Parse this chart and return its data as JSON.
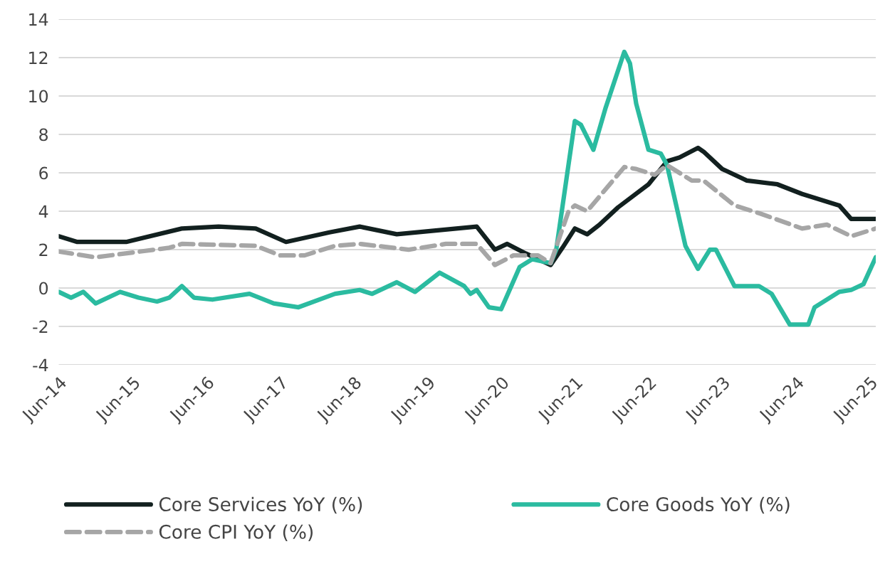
{
  "chart_data": {
    "type": "line",
    "xlim": [
      "2014-06",
      "2025-07"
    ],
    "ylim": [
      -4,
      14
    ],
    "yticks": [
      -4,
      -2,
      0,
      2,
      4,
      6,
      8,
      10,
      12,
      14
    ],
    "xticks": [
      {
        "value": "2014-06",
        "label": "Jun-14"
      },
      {
        "value": "2015-06",
        "label": "Jun-15"
      },
      {
        "value": "2016-06",
        "label": "Jun-16"
      },
      {
        "value": "2017-06",
        "label": "Jun-17"
      },
      {
        "value": "2018-06",
        "label": "Jun-18"
      },
      {
        "value": "2019-06",
        "label": "Jun-19"
      },
      {
        "value": "2020-06",
        "label": "Jun-20"
      },
      {
        "value": "2021-06",
        "label": "Jun-21"
      },
      {
        "value": "2022-06",
        "label": "Jun-22"
      },
      {
        "value": "2023-06",
        "label": "Jun-23"
      },
      {
        "value": "2024-06",
        "label": "Jun-24"
      },
      {
        "value": "2025-06",
        "label": "Jun-25"
      }
    ],
    "grid": "y",
    "legend": "bottom",
    "marker": "none",
    "series": [
      {
        "name": "Core Services YoY (%)",
        "color": "#12201f",
        "line_style": "solid",
        "x": [
          "2014-06",
          "2014-09",
          "2015-05",
          "2016-02",
          "2016-08",
          "2017-02",
          "2017-07",
          "2018-02",
          "2018-07",
          "2019-01",
          "2020-02",
          "2020-05",
          "2020-07",
          "2020-10",
          "2021-02",
          "2021-04",
          "2021-06",
          "2021-08",
          "2021-10",
          "2022-01",
          "2022-06",
          "2022-09",
          "2022-11",
          "2023-02",
          "2023-03",
          "2023-06",
          "2023-10",
          "2024-03",
          "2024-07",
          "2025-01",
          "2025-03",
          "2025-07"
        ],
        "values": [
          2.7,
          2.4,
          2.4,
          3.1,
          3.2,
          3.1,
          2.4,
          2.9,
          3.2,
          2.8,
          3.2,
          2.0,
          2.3,
          1.8,
          1.2,
          2.1,
          3.1,
          2.8,
          3.3,
          4.2,
          5.4,
          6.6,
          6.8,
          7.3,
          7.1,
          6.2,
          5.6,
          5.4,
          4.9,
          4.3,
          3.6,
          3.6
        ]
      },
      {
        "name": "Core Goods YoY (%)",
        "color": "#2bbba0",
        "line_style": "solid",
        "x": [
          "2014-06",
          "2014-08",
          "2014-10",
          "2014-12",
          "2015-04",
          "2015-07",
          "2015-10",
          "2015-12",
          "2016-02",
          "2016-04",
          "2016-07",
          "2017-01",
          "2017-05",
          "2017-09",
          "2018-03",
          "2018-07",
          "2018-09",
          "2019-01",
          "2019-04",
          "2019-08",
          "2019-12",
          "2020-01",
          "2020-02",
          "2020-04",
          "2020-06",
          "2020-09",
          "2020-11",
          "2021-02",
          "2021-03",
          "2021-06",
          "2021-07",
          "2021-09",
          "2021-11",
          "2022-02",
          "2022-03",
          "2022-04",
          "2022-06",
          "2022-08",
          "2022-09",
          "2022-12",
          "2023-02",
          "2023-04",
          "2023-05",
          "2023-08",
          "2023-12",
          "2024-02",
          "2024-05",
          "2024-08",
          "2024-09",
          "2025-01",
          "2025-03",
          "2025-05",
          "2025-07"
        ],
        "values": [
          -0.2,
          -0.5,
          -0.2,
          -0.8,
          -0.2,
          -0.5,
          -0.7,
          -0.5,
          0.1,
          -0.5,
          -0.6,
          -0.3,
          -0.8,
          -1.0,
          -0.3,
          -0.1,
          -0.3,
          0.3,
          -0.2,
          0.8,
          0.1,
          -0.3,
          -0.1,
          -1.0,
          -1.1,
          1.1,
          1.5,
          1.3,
          2.0,
          8.7,
          8.5,
          7.2,
          9.4,
          12.3,
          11.7,
          9.6,
          7.2,
          7.0,
          6.4,
          2.2,
          1.0,
          2.0,
          2.0,
          0.1,
          0.1,
          -0.3,
          -1.9,
          -1.9,
          -1.0,
          -0.2,
          -0.1,
          0.2,
          1.6
        ]
      },
      {
        "name": "Core CPI YoY (%)",
        "color": "#a6a6a6",
        "line_style": "dashed",
        "x": [
          "2014-06",
          "2014-12",
          "2015-12",
          "2016-02",
          "2017-02",
          "2017-06",
          "2017-10",
          "2018-03",
          "2018-07",
          "2019-03",
          "2019-09",
          "2020-02",
          "2020-05",
          "2020-08",
          "2020-12",
          "2021-02",
          "2021-05",
          "2021-06",
          "2021-08",
          "2022-02",
          "2022-04",
          "2022-07",
          "2022-09",
          "2023-01",
          "2023-03",
          "2023-08",
          "2023-12",
          "2024-07",
          "2024-11",
          "2025-03",
          "2025-07"
        ],
        "values": [
          1.9,
          1.6,
          2.1,
          2.3,
          2.2,
          1.7,
          1.7,
          2.2,
          2.3,
          2.0,
          2.3,
          2.3,
          1.2,
          1.7,
          1.7,
          1.3,
          4.0,
          4.3,
          4.0,
          6.3,
          6.2,
          5.9,
          6.4,
          5.6,
          5.6,
          4.3,
          3.9,
          3.1,
          3.3,
          2.7,
          3.1
        ]
      }
    ]
  }
}
